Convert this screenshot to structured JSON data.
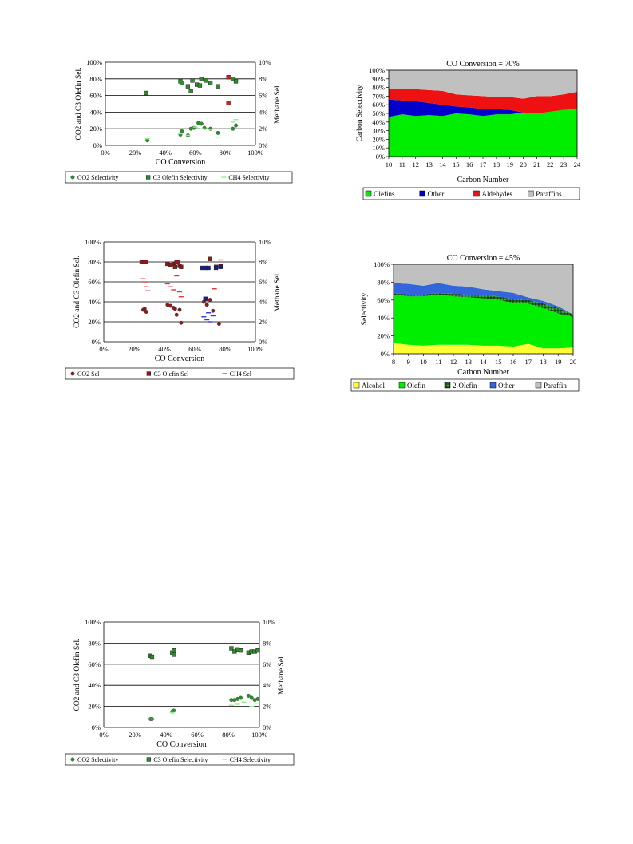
{
  "chart_data": [
    {
      "type": "scatter",
      "title": "",
      "xlabel": "CO Conversion",
      "ylabel": "CO2 and C3 Olefin Sel.",
      "y2label": "Methane Sel.",
      "xlim": [
        0,
        100
      ],
      "ylim": [
        0,
        100
      ],
      "y2lim": [
        0,
        10
      ],
      "xticks": [
        "0%",
        "20%",
        "40%",
        "60%",
        "80%",
        "100%"
      ],
      "yticks": [
        "0%",
        "20%",
        "40%",
        "60%",
        "80%",
        "100%"
      ],
      "y2ticks": [
        "0%",
        "2%",
        "4%",
        "6%",
        "8%",
        "10%"
      ],
      "legend": "bottom",
      "series": [
        {
          "name": "CO2 Selectivity",
          "marker": "circle",
          "color": "#2e8b2e",
          "axis": "left",
          "points": [
            [
              28,
              6
            ],
            [
              50,
              13
            ],
            [
              51,
              17
            ],
            [
              55,
              12
            ],
            [
              57,
              20
            ],
            [
              59,
              21
            ],
            [
              62,
              27
            ],
            [
              64,
              26
            ],
            [
              66,
              21
            ],
            [
              70,
              20
            ],
            [
              75,
              15
            ],
            [
              85,
              20
            ],
            [
              87,
              24
            ]
          ]
        },
        {
          "name": "C3 Olefin Selectivity",
          "marker": "square",
          "color": "#2e8b2e",
          "axis": "left",
          "points": [
            [
              27,
              63
            ],
            [
              50,
              77
            ],
            [
              51,
              75
            ],
            [
              55,
              71
            ],
            [
              57,
              65
            ],
            [
              58,
              78
            ],
            [
              61,
              73
            ],
            [
              63,
              72
            ],
            [
              64,
              80
            ],
            [
              67,
              78
            ],
            [
              70,
              75
            ],
            [
              75,
              71
            ],
            [
              85,
              80
            ],
            [
              87,
              77
            ]
          ]
        },
        {
          "name": "CH4 Selectivity",
          "marker": "dash",
          "color": "#90ee90",
          "axis": "right",
          "points": [
            [
              28,
              0.8
            ],
            [
              50,
              1.4
            ],
            [
              55,
              1.2
            ],
            [
              60,
              2.2
            ],
            [
              65,
              2.0
            ],
            [
              70,
              1.9
            ],
            [
              75,
              1.0
            ],
            [
              85,
              2.8
            ],
            [
              87,
              3.1
            ]
          ]
        },
        {
          "name": "",
          "marker": "square",
          "color": "#cc2222",
          "axis": "left",
          "points": [
            [
              82,
              82
            ],
            [
              82,
              51
            ]
          ]
        }
      ]
    },
    {
      "type": "scatter",
      "title": "",
      "xlabel": "CO Conversion",
      "ylabel": "CO2 and C3 Olefin Sel.",
      "y2label": "Methane Sel.",
      "xlim": [
        0,
        100
      ],
      "ylim": [
        0,
        100
      ],
      "y2lim": [
        0,
        10
      ],
      "xticks": [
        "0%",
        "20%",
        "40%",
        "60%",
        "80%",
        "100%"
      ],
      "yticks": [
        "0%",
        "20%",
        "40%",
        "60%",
        "80%",
        "100%"
      ],
      "y2ticks": [
        "0%",
        "2%",
        "4%",
        "6%",
        "8%",
        "10%"
      ],
      "legend": "bottom",
      "series": [
        {
          "name": "CO2 Sel",
          "marker": "circle",
          "color": "#8b1a1a",
          "axis": "left",
          "points": [
            [
              26,
              32
            ],
            [
              27,
              33
            ],
            [
              28,
              30
            ],
            [
              42,
              37
            ],
            [
              44,
              36
            ],
            [
              46,
              34
            ],
            [
              47,
              33
            ],
            [
              48,
              27
            ],
            [
              50,
              32
            ],
            [
              51,
              19
            ],
            [
              66,
              40
            ],
            [
              68,
              37
            ],
            [
              70,
              42
            ],
            [
              72,
              31
            ],
            [
              76,
              18
            ]
          ]
        },
        {
          "name": "C3 Olefin Sel",
          "marker": "square",
          "color": "#8b1a1a",
          "axis": "left",
          "points": [
            [
              25,
              80
            ],
            [
              27,
              80
            ],
            [
              28,
              80
            ],
            [
              42,
              78
            ],
            [
              44,
              77
            ],
            [
              46,
              78
            ],
            [
              47,
              75
            ],
            [
              48,
              80
            ],
            [
              49,
              80
            ],
            [
              50,
              76
            ],
            [
              51,
              75
            ],
            [
              70,
              83
            ],
            [
              74,
              75
            ],
            [
              77,
              76
            ]
          ]
        },
        {
          "name": "CH4 Sel",
          "marker": "dash",
          "color": "#e83030",
          "axis": "right",
          "points": [
            [
              26,
              6.3
            ],
            [
              27,
              6.0
            ],
            [
              28,
              5.5
            ],
            [
              29,
              5.1
            ],
            [
              42,
              5.8
            ],
            [
              44,
              5.5
            ],
            [
              46,
              5.2
            ],
            [
              48,
              6.6
            ],
            [
              50,
              5.0
            ],
            [
              51,
              4.5
            ],
            [
              73,
              5.3
            ],
            [
              77,
              8.2
            ]
          ]
        },
        {
          "name": "",
          "marker": "square",
          "color": "#1a1a8b",
          "axis": "left",
          "points": [
            [
              65,
              74
            ],
            [
              67,
              74
            ],
            [
              69,
              74
            ],
            [
              74,
              74
            ],
            [
              77,
              75
            ],
            [
              67,
              43
            ]
          ]
        },
        {
          "name": "",
          "marker": "dash",
          "color": "#3030e8",
          "axis": "right",
          "points": [
            [
              66,
              2.5
            ],
            [
              68,
              2.2
            ],
            [
              70,
              2.0
            ],
            [
              72,
              2.6
            ],
            [
              69,
              2.9
            ]
          ]
        }
      ]
    },
    {
      "type": "scatter",
      "title": "",
      "xlabel": "CO Conversion",
      "ylabel": "CO2 and C3 Olefin Sel.",
      "y2label": "Methane Sel.",
      "xlim": [
        0,
        100
      ],
      "ylim": [
        0,
        100
      ],
      "y2lim": [
        0,
        10
      ],
      "xticks": [
        "0%",
        "20%",
        "40%",
        "60%",
        "80%",
        "100%"
      ],
      "yticks": [
        "0%",
        "20%",
        "40%",
        "60%",
        "80%",
        "100%"
      ],
      "y2ticks": [
        "0%",
        "2%",
        "4%",
        "6%",
        "8%",
        "10%"
      ],
      "legend": "bottom",
      "series": [
        {
          "name": "CO2 Selectivity",
          "marker": "circle",
          "color": "#2e8b2e",
          "axis": "left",
          "points": [
            [
              30,
              8
            ],
            [
              31,
              8
            ],
            [
              44,
              15
            ],
            [
              45,
              16
            ],
            [
              82,
              26
            ],
            [
              84,
              26
            ],
            [
              86,
              27
            ],
            [
              88,
              28
            ],
            [
              93,
              30
            ],
            [
              95,
              28
            ],
            [
              97,
              26
            ],
            [
              99,
              27
            ]
          ]
        },
        {
          "name": "C3 Olefin Selectivity",
          "marker": "square",
          "color": "#2e8b2e",
          "axis": "left",
          "points": [
            [
              30,
              68
            ],
            [
              31,
              67
            ],
            [
              44,
              71
            ],
            [
              45,
              73
            ],
            [
              45,
              69
            ],
            [
              82,
              75
            ],
            [
              84,
              72
            ],
            [
              86,
              74
            ],
            [
              88,
              73
            ],
            [
              93,
              71
            ],
            [
              95,
              72
            ],
            [
              97,
              72
            ],
            [
              99,
              73
            ]
          ]
        },
        {
          "name": "CH4 Selectivity",
          "marker": "dash",
          "color": "#90ee90",
          "axis": "right",
          "points": [
            [
              30,
              0.8
            ],
            [
              44,
              1.4
            ],
            [
              82,
              2.1
            ],
            [
              86,
              2.2
            ],
            [
              90,
              2.4
            ],
            [
              95,
              2.0
            ],
            [
              99,
              2.3
            ]
          ]
        }
      ]
    },
    {
      "type": "area",
      "title": "CO Conversion = 70%",
      "xlabel": "Carbon Number",
      "ylabel": "Carbon Selectivity",
      "ylim": [
        0,
        100
      ],
      "categories": [
        "10",
        "11",
        "12",
        "13",
        "14",
        "15",
        "16",
        "17",
        "18",
        "19",
        "20",
        "21",
        "22",
        "23",
        "24"
      ],
      "yticks": [
        "0%",
        "10%",
        "20%",
        "30%",
        "40%",
        "50%",
        "60%",
        "70%",
        "80%",
        "90%",
        "100%"
      ],
      "legend": "bottom",
      "series": [
        {
          "name": "Olefins",
          "color": "#00ee00",
          "values": [
            46,
            49,
            47,
            48,
            47,
            50,
            49,
            47,
            49,
            49,
            51,
            50,
            52,
            54,
            55
          ]
        },
        {
          "name": "Other",
          "color": "#0000cc",
          "values": [
            20,
            16,
            17,
            14,
            13,
            8,
            8,
            8,
            6,
            5,
            0,
            0,
            0,
            0,
            0
          ]
        },
        {
          "name": "Aldehydes",
          "color": "#ee1111",
          "values": [
            13,
            13,
            14,
            15,
            16,
            14,
            14,
            15,
            14,
            15,
            16,
            20,
            18,
            18,
            20
          ]
        },
        {
          "name": "Paraffins",
          "color": "#c0c0c0",
          "values": [
            21,
            22,
            22,
            23,
            24,
            28,
            29,
            30,
            31,
            31,
            33,
            30,
            30,
            28,
            25
          ]
        }
      ]
    },
    {
      "type": "area",
      "title": "CO Conversion = 45%",
      "xlabel": "Carbon Number",
      "ylabel": "Selectivity",
      "ylim": [
        0,
        100
      ],
      "categories": [
        "8",
        "9",
        "10",
        "11",
        "12",
        "13",
        "14",
        "15",
        "16",
        "17",
        "18",
        "19",
        "20"
      ],
      "yticks": [
        "0%",
        "20%",
        "40%",
        "60%",
        "80%",
        "100%"
      ],
      "legend": "bottom",
      "series": [
        {
          "name": "Alcohol",
          "color": "#ffff33",
          "values": [
            12,
            10,
            9,
            10,
            10,
            10,
            9,
            9,
            8,
            11,
            6,
            6,
            7
          ]
        },
        {
          "name": "Olefin",
          "color": "#00ee00",
          "values": [
            54,
            54,
            55,
            56,
            54,
            53,
            53,
            51,
            49,
            45,
            45,
            39,
            34
          ]
        },
        {
          "name": "2-Olefin",
          "color": "#33aa33",
          "pattern": true,
          "values": [
            2,
            2,
            2,
            2,
            3,
            3,
            4,
            4,
            4,
            4,
            5,
            6,
            3
          ]
        },
        {
          "name": "Other",
          "color": "#3366dd",
          "values": [
            11,
            12,
            10,
            11,
            9,
            9,
            6,
            6,
            7,
            3,
            3,
            2,
            0
          ]
        },
        {
          "name": "Paraffin",
          "color": "#c0c0c0",
          "values": [
            21,
            22,
            24,
            21,
            24,
            25,
            28,
            30,
            32,
            37,
            41,
            47,
            56
          ]
        }
      ]
    }
  ]
}
